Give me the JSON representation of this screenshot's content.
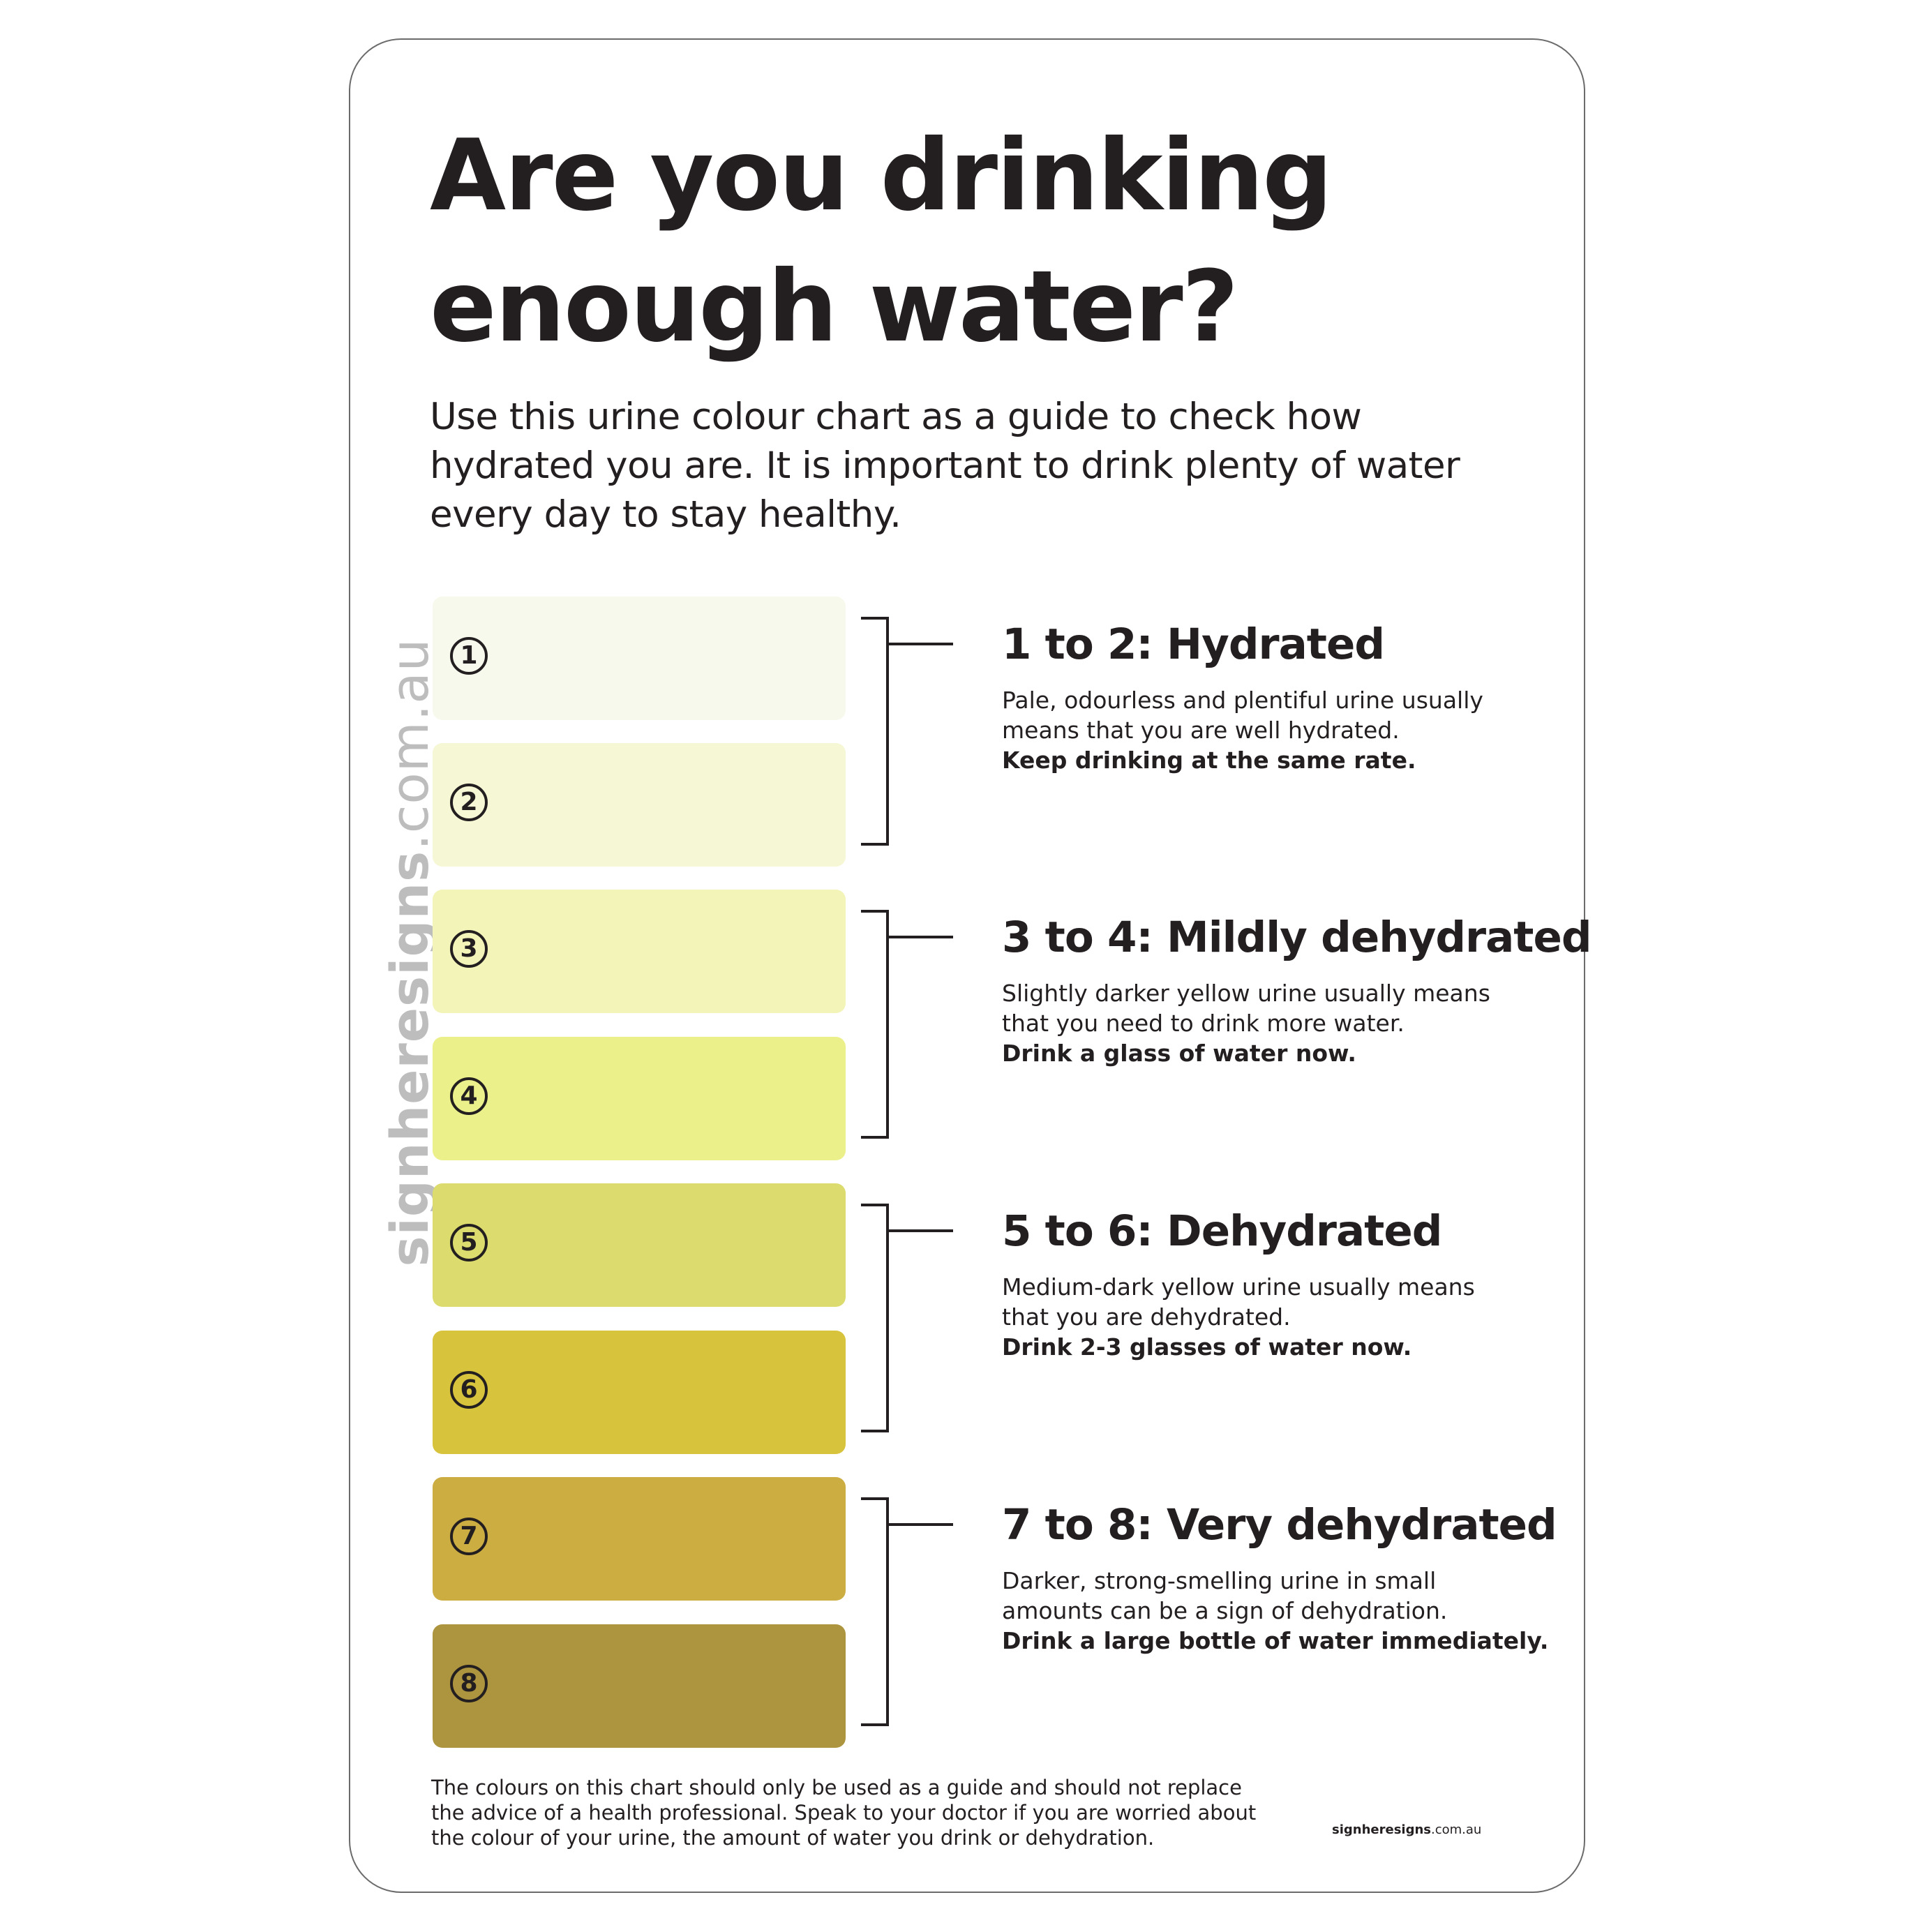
{
  "title_line1": "Are you drinking",
  "title_line2": "enough water?",
  "intro_line1": "Use this urine colour chart as a guide to check how",
  "intro_line2": "hydrated you are. It is important to drink plenty of water",
  "intro_line3": "every day to stay healthy.",
  "swatches": [
    {
      "number": "1",
      "color": "#f8f9ed"
    },
    {
      "number": "2",
      "color": "#f6f7d5"
    },
    {
      "number": "3",
      "color": "#f3f4b7"
    },
    {
      "number": "4",
      "color": "#ecf08a"
    },
    {
      "number": "5",
      "color": "#dcdb6e"
    },
    {
      "number": "6",
      "color": "#d7c43c"
    },
    {
      "number": "7",
      "color": "#ccad42"
    },
    {
      "number": "8",
      "color": "#ad943e"
    }
  ],
  "groups": [
    {
      "title": "1 to 2: Hydrated",
      "desc_line1": "Pale, odourless and plentiful urine usually",
      "desc_line2": "means that you are well hydrated.",
      "action": "Keep drinking at the same rate."
    },
    {
      "title": "3 to 4: Mildly dehydrated",
      "desc_line1": "Slightly darker yellow urine usually means",
      "desc_line2": "that you need to drink more water.",
      "action": "Drink a glass of water now."
    },
    {
      "title": "5 to 6: Dehydrated",
      "desc_line1": "Medium-dark yellow urine usually means",
      "desc_line2": "that you are dehydrated.",
      "action": "Drink 2-3 glasses of water now."
    },
    {
      "title": "7 to 8: Very dehydrated",
      "desc_line1": "Darker, strong-smelling urine in small",
      "desc_line2": "amounts can be a sign of dehydration.",
      "action": "Drink a large bottle of water immediately."
    }
  ],
  "watermark_bold": "signheresigns",
  "watermark_light": ".com.au",
  "disclaimer_line1": "The colours on this chart should only be used as a guide and should not replace",
  "disclaimer_line2": "the advice of a health professional. Speak to your doctor if you are worried about",
  "disclaimer_line3": "the colour of your urine, the amount of water you drink or dehydration.",
  "footer_brand_bold": "signheresigns",
  "footer_brand_light": ".com.au"
}
